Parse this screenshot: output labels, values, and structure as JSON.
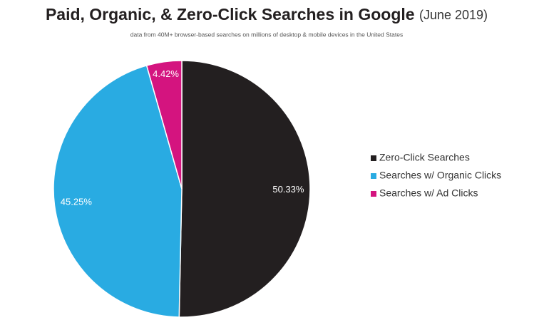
{
  "chart_data": {
    "type": "pie",
    "title": "Paid, Organic, & Zero-Click Searches in Google",
    "title_note": "(June 2019)",
    "subtitle": "data from 40M+ browser-based searches on millions of desktop & mobile devices in the United States",
    "categories": [
      "Zero-Click Searches",
      "Searches w/ Organic Clicks",
      "Searches w/ Ad Clicks"
    ],
    "values": [
      50.33,
      45.25,
      4.42
    ],
    "value_labels": [
      "50.33%",
      "45.25%",
      "4.42%"
    ],
    "colors": [
      "#231f20",
      "#29abe2",
      "#d4147f"
    ],
    "legend": "right"
  }
}
